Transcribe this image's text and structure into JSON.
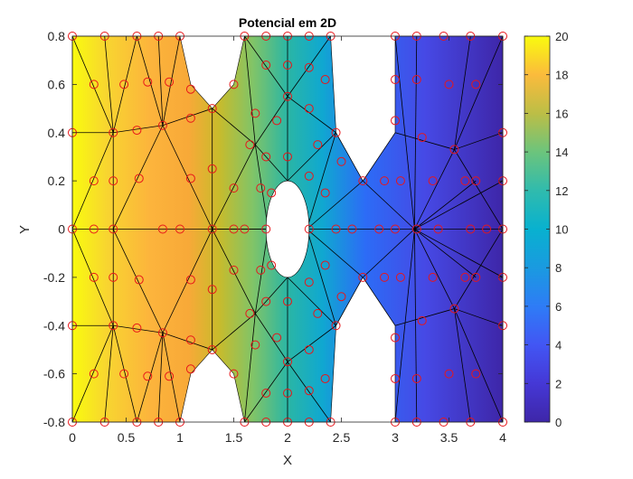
{
  "chart_data": {
    "type": "heatmap",
    "title": "Potencial em 2D",
    "xlabel": "X",
    "ylabel": "Y",
    "xlim": [
      0,
      4
    ],
    "ylim": [
      -0.8,
      0.8
    ],
    "xticks": [
      0,
      0.5,
      1,
      1.5,
      2,
      2.5,
      3,
      3.5,
      4
    ],
    "xtick_labels": [
      "0",
      "0.5",
      "1",
      "1.5",
      "2",
      "2.5",
      "3",
      "3.5",
      "4"
    ],
    "yticks": [
      0.8,
      0.6,
      0.4,
      0.2,
      0,
      -0.2,
      -0.4,
      -0.6,
      -0.8
    ],
    "ytick_labels": [
      "0.8",
      "0.6",
      "0.4",
      "0.2",
      "0",
      "-0.2",
      "-0.4",
      "-0.6",
      "-0.8"
    ],
    "colorbar": {
      "colormap": "parula",
      "range": [
        0,
        20
      ],
      "ticks": [
        0,
        2,
        4,
        6,
        8,
        10,
        12,
        14,
        16,
        18,
        20
      ],
      "tick_labels": [
        "0",
        "2",
        "4",
        "6",
        "8",
        "10",
        "12",
        "14",
        "16",
        "18",
        "20"
      ],
      "position": "right"
    },
    "potential": {
      "x_at_max": 0,
      "x_at_min": 4,
      "max": 20,
      "min": 0
    },
    "domain_outline": [
      [
        0,
        -0.8
      ],
      [
        0,
        0.8
      ],
      [
        1,
        0.8
      ],
      [
        1.1,
        0.6
      ],
      [
        1.3,
        0.5
      ],
      [
        1.5,
        0.6
      ],
      [
        1.6,
        0.8
      ],
      [
        2.4,
        0.8
      ],
      [
        2.45,
        0.4
      ],
      [
        2.7,
        0.2
      ],
      [
        3.0,
        0.4
      ],
      [
        3.0,
        0.8
      ],
      [
        4,
        0.8
      ],
      [
        4,
        -0.8
      ],
      [
        3.0,
        -0.8
      ],
      [
        3.0,
        -0.4
      ],
      [
        2.7,
        -0.2
      ],
      [
        2.45,
        -0.4
      ],
      [
        2.4,
        -0.8
      ],
      [
        1.6,
        -0.8
      ],
      [
        1.5,
        -0.6
      ],
      [
        1.3,
        -0.5
      ],
      [
        1.1,
        -0.6
      ],
      [
        1,
        -0.8
      ]
    ],
    "hole": {
      "center": [
        2,
        0
      ],
      "rx": 0.2,
      "ry": 0.2
    },
    "mesh_nodes": [
      [
        0,
        0.8
      ],
      [
        0.3,
        0.8
      ],
      [
        0.6,
        0.8
      ],
      [
        0.8,
        0.8
      ],
      [
        1,
        0.8
      ],
      [
        0,
        0.4
      ],
      [
        0,
        0
      ],
      [
        0,
        -0.4
      ],
      [
        0,
        -0.8
      ],
      [
        0.3,
        -0.8
      ],
      [
        0.6,
        -0.8
      ],
      [
        0.8,
        -0.8
      ],
      [
        1,
        -0.8
      ],
      [
        0.2,
        0.6
      ],
      [
        0.48,
        0.6
      ],
      [
        0.7,
        0.61
      ],
      [
        0.9,
        0.61
      ],
      [
        1.1,
        0.58
      ],
      [
        0.38,
        0.4
      ],
      [
        0.6,
        0.41
      ],
      [
        0.84,
        0.43
      ],
      [
        1.1,
        0.46
      ],
      [
        1.3,
        0.5
      ],
      [
        0.2,
        0.2
      ],
      [
        0.38,
        0.2
      ],
      [
        0.62,
        0.21
      ],
      [
        1.1,
        0.21
      ],
      [
        1.3,
        0.25
      ],
      [
        0.2,
        0
      ],
      [
        0.38,
        0
      ],
      [
        0.84,
        0
      ],
      [
        1.0,
        0
      ],
      [
        1.3,
        0
      ],
      [
        1.5,
        0
      ],
      [
        0.2,
        -0.2
      ],
      [
        0.38,
        -0.2
      ],
      [
        0.62,
        -0.21
      ],
      [
        1.1,
        -0.21
      ],
      [
        1.3,
        -0.25
      ],
      [
        0.38,
        -0.4
      ],
      [
        0.6,
        -0.41
      ],
      [
        0.84,
        -0.43
      ],
      [
        1.1,
        -0.46
      ],
      [
        1.3,
        -0.5
      ],
      [
        0.2,
        -0.6
      ],
      [
        0.48,
        -0.6
      ],
      [
        0.7,
        -0.61
      ],
      [
        0.9,
        -0.61
      ],
      [
        1.1,
        -0.58
      ],
      [
        1.6,
        0.8
      ],
      [
        1.8,
        0.8
      ],
      [
        2.0,
        0.8
      ],
      [
        2.2,
        0.8
      ],
      [
        2.4,
        0.8
      ],
      [
        1.5,
        0.6
      ],
      [
        1.8,
        0.68
      ],
      [
        2.0,
        0.68
      ],
      [
        2.2,
        0.67
      ],
      [
        2.35,
        0.62
      ],
      [
        1.7,
        0.48
      ],
      [
        1.9,
        0.45
      ],
      [
        2.0,
        0.55
      ],
      [
        2.2,
        0.5
      ],
      [
        2.45,
        0.4
      ],
      [
        1.65,
        0.35
      ],
      [
        1.8,
        0.3
      ],
      [
        2.0,
        0.3
      ],
      [
        2.28,
        0.35
      ],
      [
        2.5,
        0.28
      ],
      [
        1.5,
        0.17
      ],
      [
        1.75,
        0.17
      ],
      [
        1.85,
        0.15
      ],
      [
        2.2,
        0.22
      ],
      [
        2.35,
        0.15
      ],
      [
        2.7,
        0.2
      ],
      [
        1.6,
        0
      ],
      [
        1.8,
        0
      ],
      [
        2.2,
        0
      ],
      [
        2.45,
        0
      ],
      [
        2.6,
        0
      ],
      [
        1.5,
        -0.17
      ],
      [
        1.75,
        -0.17
      ],
      [
        1.85,
        -0.15
      ],
      [
        2.2,
        -0.22
      ],
      [
        2.35,
        -0.15
      ],
      [
        2.7,
        -0.2
      ],
      [
        1.65,
        -0.35
      ],
      [
        1.8,
        -0.3
      ],
      [
        2.0,
        -0.3
      ],
      [
        2.28,
        -0.35
      ],
      [
        2.5,
        -0.28
      ],
      [
        1.7,
        -0.48
      ],
      [
        1.9,
        -0.45
      ],
      [
        2.0,
        -0.55
      ],
      [
        2.2,
        -0.5
      ],
      [
        2.45,
        -0.4
      ],
      [
        1.5,
        -0.6
      ],
      [
        1.8,
        -0.68
      ],
      [
        2.0,
        -0.68
      ],
      [
        2.2,
        -0.67
      ],
      [
        2.35,
        -0.62
      ],
      [
        1.6,
        -0.8
      ],
      [
        1.8,
        -0.8
      ],
      [
        2.0,
        -0.8
      ],
      [
        2.2,
        -0.8
      ],
      [
        2.4,
        -0.8
      ],
      [
        3.0,
        0.8
      ],
      [
        3.2,
        0.8
      ],
      [
        3.45,
        0.8
      ],
      [
        3.7,
        0.8
      ],
      [
        4,
        0.8
      ],
      [
        3.0,
        0.62
      ],
      [
        3.2,
        0.62
      ],
      [
        3.5,
        0.6
      ],
      [
        3.75,
        0.6
      ],
      [
        3.0,
        0.45
      ],
      [
        3.25,
        0.38
      ],
      [
        3.55,
        0.33
      ],
      [
        4,
        0.4
      ],
      [
        2.9,
        0.2
      ],
      [
        3.05,
        0.2
      ],
      [
        3.35,
        0.2
      ],
      [
        3.65,
        0.2
      ],
      [
        3.75,
        0.2
      ],
      [
        2.85,
        0
      ],
      [
        3.0,
        0
      ],
      [
        3.2,
        0
      ],
      [
        3.4,
        0
      ],
      [
        3.7,
        0
      ],
      [
        3.85,
        0
      ],
      [
        4,
        0
      ],
      [
        2.9,
        -0.2
      ],
      [
        3.05,
        -0.2
      ],
      [
        3.35,
        -0.2
      ],
      [
        3.65,
        -0.2
      ],
      [
        3.75,
        -0.2
      ],
      [
        3.0,
        -0.45
      ],
      [
        3.25,
        -0.38
      ],
      [
        3.55,
        -0.33
      ],
      [
        4,
        -0.4
      ],
      [
        3.0,
        -0.62
      ],
      [
        3.2,
        -0.62
      ],
      [
        3.5,
        -0.6
      ],
      [
        3.75,
        -0.6
      ],
      [
        3.0,
        -0.8
      ],
      [
        3.2,
        -0.8
      ],
      [
        3.45,
        -0.8
      ],
      [
        3.7,
        -0.8
      ],
      [
        4,
        -0.8
      ],
      [
        4,
        0.2
      ],
      [
        4,
        -0.2
      ]
    ],
    "mesh_edges": [
      [
        [
          0,
          0.8
        ],
        [
          0.38,
          0.4
        ]
      ],
      [
        [
          0.3,
          0.8
        ],
        [
          0.38,
          0.4
        ]
      ],
      [
        [
          0.6,
          0.8
        ],
        [
          0.38,
          0.4
        ]
      ],
      [
        [
          0.6,
          0.8
        ],
        [
          0.84,
          0.43
        ]
      ],
      [
        [
          0.8,
          0.8
        ],
        [
          0.84,
          0.43
        ]
      ],
      [
        [
          1,
          0.8
        ],
        [
          0.84,
          0.43
        ]
      ],
      [
        [
          0,
          0.4
        ],
        [
          0.38,
          0.4
        ]
      ],
      [
        [
          0,
          0
        ],
        [
          0.38,
          0.4
        ]
      ],
      [
        [
          0.38,
          0.4
        ],
        [
          0.84,
          0.43
        ]
      ],
      [
        [
          0.84,
          0.43
        ],
        [
          1.3,
          0.5
        ]
      ],
      [
        [
          0.38,
          0.4
        ],
        [
          0.38,
          0
        ]
      ],
      [
        [
          0.84,
          0.43
        ],
        [
          1.3,
          0
        ]
      ],
      [
        [
          0.84,
          0.43
        ],
        [
          0.38,
          0
        ]
      ],
      [
        [
          1.3,
          0.5
        ],
        [
          1.3,
          0
        ]
      ],
      [
        [
          1,
          0.8
        ],
        [
          1.3,
          0.5
        ]
      ],
      [
        [
          0,
          0
        ],
        [
          4,
          0
        ]
      ],
      [
        [
          0,
          -0.8
        ],
        [
          0.38,
          -0.4
        ]
      ],
      [
        [
          0.3,
          -0.8
        ],
        [
          0.38,
          -0.4
        ]
      ],
      [
        [
          0.6,
          -0.8
        ],
        [
          0.38,
          -0.4
        ]
      ],
      [
        [
          0.6,
          -0.8
        ],
        [
          0.84,
          -0.43
        ]
      ],
      [
        [
          0.8,
          -0.8
        ],
        [
          0.84,
          -0.43
        ]
      ],
      [
        [
          1,
          -0.8
        ],
        [
          0.84,
          -0.43
        ]
      ],
      [
        [
          0,
          -0.4
        ],
        [
          0.38,
          -0.4
        ]
      ],
      [
        [
          0,
          0
        ],
        [
          0.38,
          -0.4
        ]
      ],
      [
        [
          0.38,
          -0.4
        ],
        [
          0.84,
          -0.43
        ]
      ],
      [
        [
          0.84,
          -0.43
        ],
        [
          1.3,
          -0.5
        ]
      ],
      [
        [
          0.38,
          -0.4
        ],
        [
          0.38,
          0
        ]
      ],
      [
        [
          0.84,
          -0.43
        ],
        [
          1.3,
          0
        ]
      ],
      [
        [
          0.84,
          -0.43
        ],
        [
          0.38,
          0
        ]
      ],
      [
        [
          1.3,
          -0.5
        ],
        [
          1.3,
          0
        ]
      ],
      [
        [
          1,
          -0.8
        ],
        [
          1.3,
          -0.5
        ]
      ],
      [
        [
          1.3,
          0.5
        ],
        [
          1.6,
          0.8
        ]
      ],
      [
        [
          1.3,
          0.5
        ],
        [
          1.7,
          0.35
        ]
      ],
      [
        [
          1.3,
          0
        ],
        [
          1.7,
          0.35
        ]
      ],
      [
        [
          1.6,
          0.8
        ],
        [
          1.7,
          0.35
        ]
      ],
      [
        [
          1.7,
          0.35
        ],
        [
          2.0,
          0.55
        ]
      ],
      [
        [
          1.6,
          0.8
        ],
        [
          2.0,
          0.55
        ]
      ],
      [
        [
          2.0,
          0.8
        ],
        [
          2.0,
          0.55
        ]
      ],
      [
        [
          2.4,
          0.8
        ],
        [
          2.0,
          0.55
        ]
      ],
      [
        [
          2.0,
          0.55
        ],
        [
          2.0,
          0.2
        ]
      ],
      [
        [
          2.0,
          0.55
        ],
        [
          2.45,
          0.4
        ]
      ],
      [
        [
          2.0,
          0.2
        ],
        [
          2.45,
          0.4
        ]
      ],
      [
        [
          2.0,
          0.2
        ],
        [
          1.7,
          0.35
        ]
      ],
      [
        [
          1.7,
          0.35
        ],
        [
          1.82,
          0
        ]
      ],
      [
        [
          1.3,
          0
        ],
        [
          1.82,
          0
        ]
      ],
      [
        [
          2.45,
          0.4
        ],
        [
          2.18,
          0
        ]
      ],
      [
        [
          2.45,
          0.4
        ],
        [
          2.7,
          0.2
        ]
      ],
      [
        [
          2.7,
          0.2
        ],
        [
          2.18,
          0
        ]
      ],
      [
        [
          2.7,
          0.2
        ],
        [
          3.18,
          0
        ]
      ],
      [
        [
          2.7,
          0.2
        ],
        [
          3.0,
          0.4
        ]
      ],
      [
        [
          1.3,
          -0.5
        ],
        [
          1.6,
          -0.8
        ]
      ],
      [
        [
          1.3,
          -0.5
        ],
        [
          1.7,
          -0.35
        ]
      ],
      [
        [
          1.3,
          0
        ],
        [
          1.7,
          -0.35
        ]
      ],
      [
        [
          1.6,
          -0.8
        ],
        [
          1.7,
          -0.35
        ]
      ],
      [
        [
          1.7,
          -0.35
        ],
        [
          2.0,
          -0.55
        ]
      ],
      [
        [
          1.6,
          -0.8
        ],
        [
          2.0,
          -0.55
        ]
      ],
      [
        [
          2.0,
          -0.8
        ],
        [
          2.0,
          -0.55
        ]
      ],
      [
        [
          2.4,
          -0.8
        ],
        [
          2.0,
          -0.55
        ]
      ],
      [
        [
          2.0,
          -0.55
        ],
        [
          2.0,
          -0.2
        ]
      ],
      [
        [
          2.0,
          -0.55
        ],
        [
          2.45,
          -0.4
        ]
      ],
      [
        [
          2.0,
          -0.2
        ],
        [
          2.45,
          -0.4
        ]
      ],
      [
        [
          2.0,
          -0.2
        ],
        [
          1.7,
          -0.35
        ]
      ],
      [
        [
          1.7,
          -0.35
        ],
        [
          1.82,
          0
        ]
      ],
      [
        [
          2.45,
          -0.4
        ],
        [
          2.18,
          0
        ]
      ],
      [
        [
          2.45,
          -0.4
        ],
        [
          2.7,
          -0.2
        ]
      ],
      [
        [
          2.7,
          -0.2
        ],
        [
          2.18,
          0
        ]
      ],
      [
        [
          2.7,
          -0.2
        ],
        [
          3.18,
          0
        ]
      ],
      [
        [
          2.7,
          -0.2
        ],
        [
          3.0,
          -0.4
        ]
      ],
      [
        [
          3.0,
          0.8
        ],
        [
          3.18,
          0
        ]
      ],
      [
        [
          3.2,
          0.8
        ],
        [
          3.18,
          0
        ]
      ],
      [
        [
          3.0,
          0.4
        ],
        [
          3.55,
          0.33
        ]
      ],
      [
        [
          3.18,
          0
        ],
        [
          3.55,
          0.33
        ]
      ],
      [
        [
          3.55,
          0.33
        ],
        [
          4,
          0.8
        ]
      ],
      [
        [
          3.55,
          0.33
        ],
        [
          3.7,
          0.8
        ]
      ],
      [
        [
          3.55,
          0.33
        ],
        [
          4,
          0
        ]
      ],
      [
        [
          3.55,
          0.33
        ],
        [
          4,
          0.4
        ]
      ],
      [
        [
          3.18,
          0
        ],
        [
          3.75,
          0.2
        ]
      ],
      [
        [
          3.18,
          0
        ],
        [
          4,
          0.2
        ]
      ],
      [
        [
          3.0,
          -0.8
        ],
        [
          3.18,
          0
        ]
      ],
      [
        [
          3.2,
          -0.8
        ],
        [
          3.18,
          0
        ]
      ],
      [
        [
          3.0,
          -0.4
        ],
        [
          3.55,
          -0.33
        ]
      ],
      [
        [
          3.18,
          0
        ],
        [
          3.55,
          -0.33
        ]
      ],
      [
        [
          3.55,
          -0.33
        ],
        [
          4,
          -0.8
        ]
      ],
      [
        [
          3.55,
          -0.33
        ],
        [
          3.7,
          -0.8
        ]
      ],
      [
        [
          3.55,
          -0.33
        ],
        [
          4,
          0
        ]
      ],
      [
        [
          3.55,
          -0.33
        ],
        [
          4,
          -0.4
        ]
      ],
      [
        [
          3.18,
          0
        ],
        [
          3.75,
          -0.2
        ]
      ],
      [
        [
          3.18,
          0
        ],
        [
          4,
          -0.2
        ]
      ]
    ]
  }
}
